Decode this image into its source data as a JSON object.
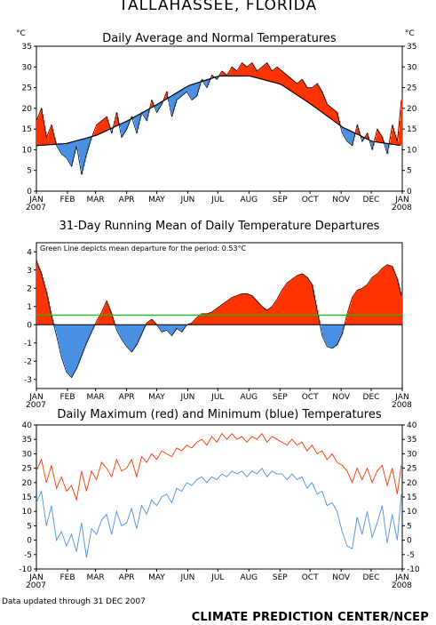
{
  "title": "TALLAHASSEE, FLORIDA",
  "footer": {
    "note": "Data updated through 31 DEC 2007",
    "org": "CLIMATE PREDICTION CENTER/NCEP"
  },
  "months": [
    "JAN",
    "FEB",
    "MAR",
    "APR",
    "MAY",
    "JUN",
    "JUL",
    "AUG",
    "SEP",
    "OCT",
    "NOV",
    "DEC",
    "JAN"
  ],
  "year_start": "2007",
  "year_end": "2008",
  "colors": {
    "above": "#ff3300",
    "below": "#4a90e2",
    "max_line": "#ff3300",
    "min_line": "#4a90e2",
    "mean_line": "#00cc00"
  },
  "chart_data": [
    {
      "type": "area",
      "title": "Daily Average and Normal Temperatures",
      "unit_left": "°C",
      "unit_right": "°C",
      "ylim": [
        0,
        35
      ],
      "yticks": [
        0,
        5,
        10,
        15,
        20,
        25,
        30,
        35
      ],
      "normal": {
        "x_day": [
          0,
          30,
          60,
          91,
          121,
          152,
          182,
          213,
          244,
          274,
          305,
          335,
          365
        ],
        "y": [
          11,
          11.5,
          13.5,
          17,
          21,
          25.5,
          27.8,
          27.8,
          25.8,
          21,
          15.5,
          12,
          11
        ]
      },
      "average": {
        "x_day": [
          0,
          5,
          10,
          15,
          20,
          25,
          30,
          35,
          40,
          45,
          50,
          55,
          60,
          65,
          70,
          75,
          80,
          85,
          90,
          95,
          100,
          105,
          110,
          115,
          120,
          125,
          130,
          135,
          140,
          145,
          150,
          155,
          160,
          165,
          170,
          175,
          180,
          185,
          190,
          195,
          200,
          205,
          210,
          215,
          220,
          225,
          230,
          235,
          240,
          245,
          250,
          255,
          260,
          265,
          270,
          275,
          280,
          285,
          290,
          295,
          300,
          305,
          310,
          315,
          320,
          325,
          330,
          335,
          340,
          345,
          350,
          355,
          360,
          364
        ],
        "y": [
          17,
          20,
          13,
          16,
          11,
          9,
          8,
          6,
          11,
          4,
          9,
          13,
          16,
          17,
          18,
          14,
          19,
          13,
          15,
          18,
          14,
          19,
          17,
          22,
          19,
          21,
          24,
          18,
          22,
          23,
          24,
          22,
          23,
          27,
          25,
          28,
          27,
          29,
          28,
          30,
          29,
          31,
          30,
          31,
          29,
          30,
          31,
          29,
          30,
          29,
          28,
          27,
          26,
          27,
          25,
          25,
          26,
          24,
          21,
          20,
          19,
          14,
          12,
          11,
          16,
          12,
          14,
          10,
          15,
          13,
          9,
          16,
          12,
          22
        ]
      }
    },
    {
      "type": "area",
      "title": "31-Day Running Mean of Daily Temperature Departures",
      "annotation": "Green Line depicts mean departure for the period: 0.53°C",
      "ylim": [
        -3.5,
        4.5
      ],
      "yticks": [
        -3,
        -2,
        -1,
        0,
        1,
        2,
        3,
        4
      ],
      "mean_departure": 0.53,
      "departure": {
        "x_day": [
          0,
          5,
          10,
          15,
          20,
          25,
          30,
          35,
          40,
          45,
          50,
          55,
          60,
          65,
          70,
          75,
          80,
          85,
          90,
          95,
          100,
          105,
          110,
          115,
          120,
          125,
          130,
          135,
          140,
          145,
          150,
          155,
          160,
          165,
          170,
          175,
          180,
          185,
          190,
          195,
          200,
          205,
          210,
          215,
          220,
          225,
          230,
          235,
          240,
          245,
          250,
          255,
          260,
          265,
          270,
          275,
          280,
          285,
          290,
          295,
          300,
          305,
          310,
          315,
          320,
          325,
          330,
          335,
          340,
          345,
          350,
          355,
          360,
          364
        ],
        "y": [
          3.5,
          2.8,
          1.8,
          0.5,
          -0.6,
          -1.8,
          -2.6,
          -2.9,
          -2.4,
          -1.7,
          -1.0,
          -0.4,
          0.2,
          0.7,
          1.3,
          0.6,
          -0.3,
          -0.8,
          -1.2,
          -1.5,
          -1.1,
          -0.5,
          0.1,
          0.3,
          0.0,
          -0.4,
          -0.3,
          -0.6,
          -0.2,
          -0.4,
          0.0,
          0.1,
          0.4,
          0.6,
          0.6,
          0.7,
          0.9,
          1.1,
          1.3,
          1.5,
          1.6,
          1.7,
          1.7,
          1.6,
          1.3,
          1.0,
          0.8,
          1.0,
          1.4,
          1.9,
          2.3,
          2.5,
          2.7,
          2.8,
          2.6,
          2.2,
          0.8,
          -0.6,
          -1.2,
          -1.3,
          -1.1,
          -0.5,
          0.6,
          1.5,
          1.9,
          2.0,
          2.2,
          2.6,
          2.8,
          3.1,
          3.3,
          3.2,
          2.5,
          1.6
        ]
      }
    },
    {
      "type": "line",
      "title": "Daily Maximum (red) and Minimum (blue) Temperatures",
      "ylim": [
        -10,
        40
      ],
      "yticks": [
        -10,
        -5,
        0,
        5,
        10,
        15,
        20,
        25,
        30,
        35,
        40
      ],
      "series": [
        {
          "name": "Maximum",
          "x_day": [
            0,
            5,
            10,
            15,
            20,
            25,
            30,
            35,
            40,
            45,
            50,
            55,
            60,
            65,
            70,
            75,
            80,
            85,
            90,
            95,
            100,
            105,
            110,
            115,
            120,
            125,
            130,
            135,
            140,
            145,
            150,
            155,
            160,
            165,
            170,
            175,
            180,
            185,
            190,
            195,
            200,
            205,
            210,
            215,
            220,
            225,
            230,
            235,
            240,
            245,
            250,
            255,
            260,
            265,
            270,
            275,
            280,
            285,
            290,
            295,
            300,
            305,
            310,
            315,
            320,
            325,
            330,
            335,
            340,
            345,
            350,
            355,
            360,
            364
          ],
          "y": [
            24,
            28,
            20,
            26,
            18,
            22,
            17,
            19,
            14,
            24,
            17,
            24,
            21,
            27,
            25,
            22,
            28,
            24,
            25,
            28,
            22,
            29,
            27,
            30,
            28,
            31,
            30,
            29,
            32,
            31,
            33,
            32,
            34,
            35,
            33,
            36,
            34,
            37,
            35,
            37,
            35,
            36,
            34,
            36,
            35,
            37,
            34,
            36,
            35,
            34,
            33,
            35,
            33,
            34,
            31,
            33,
            30,
            31,
            28,
            30,
            27,
            26,
            24,
            20,
            25,
            21,
            25,
            20,
            24,
            26,
            19,
            25,
            16,
            26
          ]
        },
        {
          "name": "Minimum",
          "x_day": [
            0,
            5,
            10,
            15,
            20,
            25,
            30,
            35,
            40,
            45,
            50,
            55,
            60,
            65,
            70,
            75,
            80,
            85,
            90,
            95,
            100,
            105,
            110,
            115,
            120,
            125,
            130,
            135,
            140,
            145,
            150,
            155,
            160,
            165,
            170,
            175,
            180,
            185,
            190,
            195,
            200,
            205,
            210,
            215,
            220,
            225,
            230,
            235,
            240,
            245,
            250,
            255,
            260,
            265,
            270,
            275,
            280,
            285,
            290,
            295,
            300,
            305,
            310,
            315,
            320,
            325,
            330,
            335,
            340,
            345,
            350,
            355,
            360,
            364
          ],
          "y": [
            13,
            17,
            5,
            12,
            0,
            3,
            -2,
            2,
            -4,
            6,
            -6,
            4,
            2,
            7,
            9,
            2,
            10,
            5,
            6,
            11,
            4,
            12,
            9,
            14,
            12,
            15,
            16,
            13,
            18,
            17,
            20,
            19,
            21,
            22,
            20,
            22,
            21,
            23,
            22,
            24,
            23,
            24,
            22,
            24,
            23,
            25,
            22,
            24,
            23,
            23,
            21,
            23,
            21,
            22,
            18,
            20,
            16,
            17,
            12,
            13,
            10,
            3,
            -2,
            -3,
            8,
            2,
            10,
            1,
            6,
            12,
            -1,
            9,
            0,
            16
          ]
        }
      ]
    }
  ]
}
